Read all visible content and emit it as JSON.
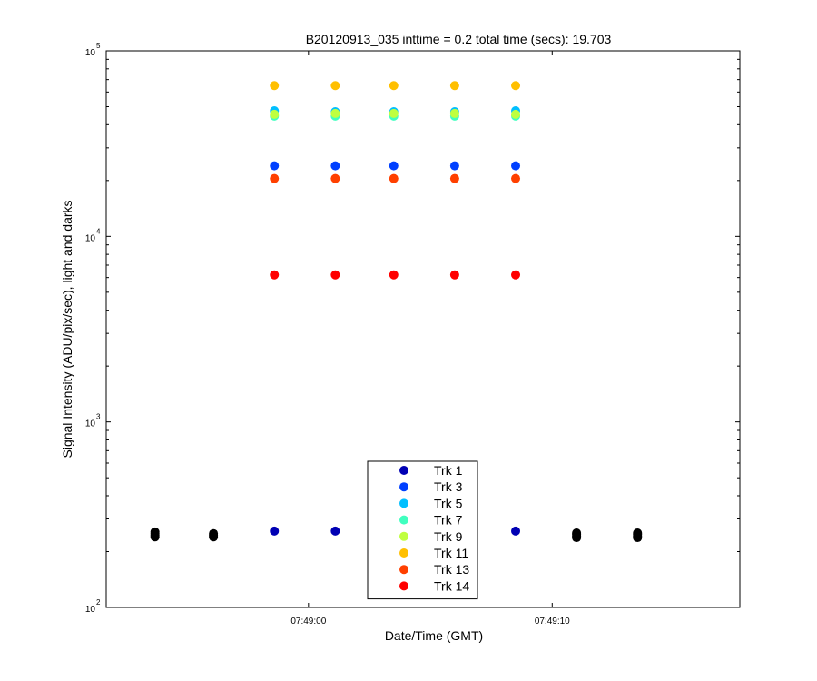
{
  "chart_data": {
    "type": "scatter",
    "title": "B20120913_035 inttime = 0.2 total time (secs): 19.703",
    "xlabel": "Date/Time (GMT)",
    "ylabel": "Signal Intensity (ADU/pix/sec), light and darks",
    "y_scale": "log",
    "ylim": [
      100,
      100000
    ],
    "xlim": [
      "07:48:51.7",
      "07:49:17.7"
    ],
    "x_ticks": [
      {
        "time": "07:49:00",
        "label": "07:49:00"
      },
      {
        "time": "07:49:10",
        "label": "07:49:10"
      }
    ],
    "y_ticks": [
      {
        "value": 100,
        "base": "10",
        "exp": "2"
      },
      {
        "value": 1000,
        "base": "10",
        "exp": "3"
      },
      {
        "value": 10000,
        "base": "10",
        "exp": "4"
      },
      {
        "value": 100000,
        "base": "10",
        "exp": "5"
      }
    ],
    "grid": false,
    "legend_position": "bottom-center",
    "series": [
      {
        "name": "Trk 1",
        "color": "#0000b4",
        "x": [
          "07:48:58.6",
          "07:49:01.1",
          "07:49:08.5"
        ],
        "values": [
          258,
          258,
          258
        ]
      },
      {
        "name": "Trk 3",
        "color": "#0040ff",
        "x": [
          "07:48:58.6",
          "07:49:01.1",
          "07:49:03.5",
          "07:49:06.0",
          "07:49:08.5"
        ],
        "values": [
          24000,
          24000,
          24000,
          24000,
          24000
        ]
      },
      {
        "name": "Trk 5",
        "color": "#00bfff",
        "x": [
          "07:48:58.6",
          "07:49:01.1",
          "07:49:03.5",
          "07:49:06.0",
          "07:49:08.5"
        ],
        "values": [
          47500,
          47000,
          47000,
          47000,
          47500
        ]
      },
      {
        "name": "Trk 7",
        "color": "#40ffbf",
        "x": [
          "07:48:58.6",
          "07:49:01.1",
          "07:49:03.5",
          "07:49:06.0",
          "07:49:08.5"
        ],
        "values": [
          44500,
          44500,
          44500,
          44500,
          44500
        ]
      },
      {
        "name": "Trk 9",
        "color": "#bfff40",
        "x": [
          "07:48:58.6",
          "07:49:01.1",
          "07:49:03.5",
          "07:49:06.0",
          "07:49:08.5"
        ],
        "values": [
          45500,
          46000,
          46000,
          46000,
          45500
        ]
      },
      {
        "name": "Trk 11",
        "color": "#ffbf00",
        "x": [
          "07:48:58.6",
          "07:49:01.1",
          "07:49:03.5",
          "07:49:06.0",
          "07:49:08.5"
        ],
        "values": [
          65000,
          65000,
          65000,
          65000,
          65000
        ]
      },
      {
        "name": "Trk 13",
        "color": "#ff4000",
        "x": [
          "07:48:58.6",
          "07:49:01.1",
          "07:49:03.5",
          "07:49:06.0",
          "07:49:08.5"
        ],
        "values": [
          20500,
          20500,
          20500,
          20500,
          20500
        ]
      },
      {
        "name": "Trk 14",
        "color": "#ff0000",
        "x": [
          "07:48:58.6",
          "07:49:01.1",
          "07:49:03.5",
          "07:49:06.0",
          "07:49:08.5"
        ],
        "values": [
          6200,
          6200,
          6200,
          6200,
          6200
        ]
      },
      {
        "color": "#000000",
        "x": [
          "07:48:53.7",
          "07:48:53.7",
          "07:48:53.7",
          "07:48:53.7",
          "07:48:56.1",
          "07:48:56.1",
          "07:48:56.1",
          "07:49:11.0",
          "07:49:11.0",
          "07:49:11.0",
          "07:49:11.0",
          "07:49:13.5",
          "07:49:13.5",
          "07:49:13.5",
          "07:49:13.5"
        ],
        "values": [
          255,
          250,
          245,
          240,
          250,
          245,
          240,
          252,
          247,
          242,
          238,
          252,
          247,
          242,
          238
        ]
      }
    ]
  }
}
